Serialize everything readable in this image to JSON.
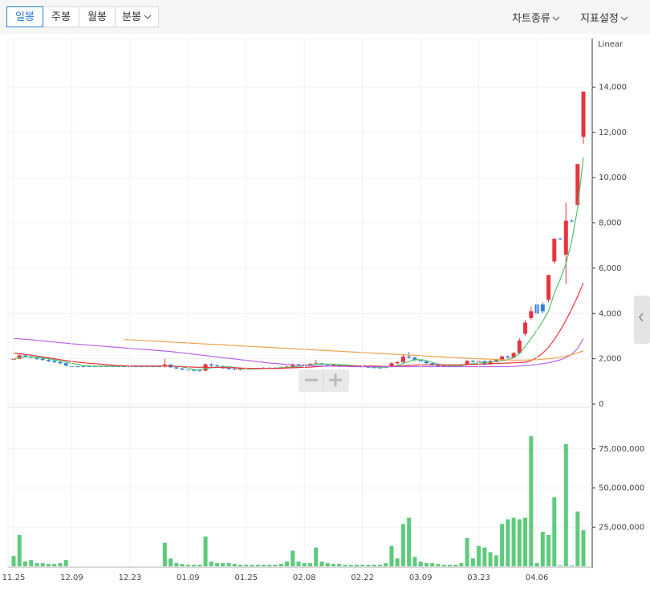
{
  "toolbar": {
    "periods": [
      "일봉",
      "주봉",
      "월봉",
      "분봉"
    ],
    "menus": [
      "차트종류",
      "지표설정"
    ]
  },
  "chart_data": [
    {
      "type": "candlestick",
      "scale_label": "Linear",
      "up_color": "#e8333f",
      "down_color": "#2f7fd8",
      "ylim": [
        0,
        16000
      ],
      "grid": true,
      "yticks": [
        0,
        {
          "value": 2000,
          "label": "2,000"
        },
        {
          "value": 4000,
          "label": "4,000"
        },
        {
          "value": 6000,
          "label": "6,000"
        },
        {
          "value": 8000,
          "label": "8,000"
        },
        {
          "value": 10000,
          "label": "10,000"
        },
        {
          "value": 12000,
          "label": "12,000"
        },
        {
          "value": 14000,
          "label": "14,000"
        }
      ],
      "open": [
        1950,
        2000,
        2150,
        2100,
        2050,
        2000,
        1950,
        1900,
        1850,
        1800,
        1670,
        1670,
        1670,
        1670,
        1670,
        1670,
        1670,
        1670,
        1670,
        1670,
        1670,
        1670,
        1670,
        1670,
        1670,
        1670,
        1670,
        1750,
        1620,
        1570,
        1520,
        1500,
        1480,
        1470,
        1750,
        1700,
        1680,
        1580,
        1550,
        1520,
        1550,
        1580,
        1560,
        1580,
        1600,
        1580,
        1600,
        1620,
        1650,
        1750,
        1700,
        1750,
        1780,
        1800,
        1750,
        1720,
        1740,
        1720,
        1700,
        1680,
        1660,
        1640,
        1620,
        1610,
        1600,
        1650,
        1800,
        1850,
        2100,
        2050,
        1950,
        1880,
        1800,
        1720,
        1680,
        1700,
        1680,
        1700,
        1750,
        1900,
        1860,
        1900,
        1750,
        1900,
        1950,
        2100,
        2050,
        2250,
        3100,
        3800,
        4400,
        4400,
        4600,
        6300,
        7300,
        6600,
        8100,
        8800,
        11800
      ],
      "high": [
        2050,
        2250,
        2200,
        2150,
        2100,
        2050,
        2000,
        1950,
        1900,
        1850,
        1670,
        1670,
        1670,
        1670,
        1670,
        1670,
        1670,
        1670,
        1670,
        1670,
        1670,
        1670,
        1670,
        1670,
        1670,
        1670,
        2000,
        1750,
        1650,
        1600,
        1550,
        1520,
        1500,
        1800,
        1800,
        1750,
        1700,
        1620,
        1600,
        1580,
        1600,
        1600,
        1600,
        1620,
        1620,
        1620,
        1650,
        1700,
        1800,
        1800,
        1780,
        1800,
        1950,
        1820,
        1780,
        1760,
        1760,
        1740,
        1720,
        1700,
        1700,
        1680,
        1660,
        1650,
        1680,
        1850,
        1900,
        2200,
        2300,
        2100,
        2000,
        1900,
        1820,
        1750,
        1720,
        1730,
        1720,
        1760,
        1950,
        1950,
        2000,
        1920,
        1950,
        2000,
        2150,
        2150,
        2300,
        2900,
        3700,
        4300,
        4700,
        4500,
        5700,
        7300,
        7350,
        8900,
        8150,
        10600,
        13800
      ],
      "low": [
        1900,
        2000,
        2050,
        2000,
        1950,
        1900,
        1850,
        1800,
        1750,
        1650,
        1670,
        1670,
        1670,
        1670,
        1670,
        1670,
        1670,
        1670,
        1670,
        1670,
        1670,
        1670,
        1670,
        1670,
        1670,
        1670,
        1600,
        1600,
        1550,
        1500,
        1480,
        1450,
        1450,
        1450,
        1650,
        1650,
        1550,
        1520,
        1500,
        1500,
        1520,
        1540,
        1540,
        1550,
        1560,
        1550,
        1580,
        1600,
        1620,
        1680,
        1680,
        1700,
        1740,
        1720,
        1700,
        1690,
        1700,
        1680,
        1660,
        1640,
        1620,
        1600,
        1590,
        1580,
        1580,
        1620,
        1750,
        1820,
        2000,
        1900,
        1850,
        1780,
        1700,
        1650,
        1640,
        1660,
        1650,
        1680,
        1720,
        1830,
        1840,
        1700,
        1740,
        1850,
        1920,
        2000,
        2030,
        2200,
        3000,
        3700,
        3900,
        4000,
        4500,
        6200,
        7250,
        5300,
        8050,
        8700,
        11500
      ],
      "close": [
        2000,
        2150,
        2100,
        2050,
        2000,
        1950,
        1900,
        1850,
        1800,
        1700,
        1670,
        1670,
        1670,
        1670,
        1670,
        1670,
        1670,
        1670,
        1670,
        1670,
        1670,
        1670,
        1670,
        1670,
        1670,
        1670,
        1750,
        1620,
        1570,
        1520,
        1500,
        1480,
        1470,
        1750,
        1700,
        1680,
        1580,
        1550,
        1520,
        1550,
        1580,
        1560,
        1580,
        1600,
        1580,
        1600,
        1620,
        1650,
        1750,
        1700,
        1750,
        1780,
        1800,
        1750,
        1720,
        1740,
        1720,
        1700,
        1680,
        1660,
        1640,
        1620,
        1610,
        1600,
        1650,
        1800,
        1850,
        2100,
        2050,
        1950,
        1880,
        1800,
        1720,
        1680,
        1700,
        1680,
        1700,
        1750,
        1900,
        1860,
        1900,
        1750,
        1900,
        1950,
        2100,
        2050,
        2250,
        2800,
        3600,
        4100,
        4000,
        4100,
        5700,
        7300,
        7300,
        8100,
        8100,
        10600,
        13800
      ],
      "lines": [
        {
          "color": "#4fc46b",
          "values": [
            2000,
            2050,
            2080,
            2080,
            2060,
            2040,
            2000,
            1950,
            1900,
            1850,
            1800,
            1750,
            1700,
            1680,
            1670,
            1670,
            1670,
            1670,
            1670,
            1670,
            1670,
            1670,
            1670,
            1670,
            1670,
            1670,
            1690,
            1680,
            1670,
            1640,
            1590,
            1530,
            1510,
            1560,
            1600,
            1620,
            1640,
            1650,
            1610,
            1560,
            1550,
            1550,
            1550,
            1570,
            1580,
            1580,
            1600,
            1610,
            1640,
            1660,
            1690,
            1730,
            1760,
            1760,
            1760,
            1760,
            1740,
            1730,
            1710,
            1690,
            1670,
            1650,
            1630,
            1620,
            1620,
            1660,
            1700,
            1790,
            1880,
            1950,
            1970,
            1920,
            1840,
            1760,
            1720,
            1700,
            1690,
            1700,
            1750,
            1780,
            1820,
            1830,
            1860,
            1870,
            1920,
            1950,
            2050,
            2230,
            2540,
            2900,
            3250,
            3650,
            4100,
            4900,
            5500,
            6200,
            7200,
            8650,
            10900
          ]
        },
        {
          "color": "#e8333f",
          "values": [
            2250,
            2220,
            2190,
            2160,
            2120,
            2080,
            2040,
            2000,
            1960,
            1920,
            1880,
            1850,
            1820,
            1800,
            1780,
            1760,
            1740,
            1720,
            1700,
            1690,
            1680,
            1680,
            1680,
            1680,
            1680,
            1680,
            1680,
            1670,
            1660,
            1650,
            1640,
            1630,
            1620,
            1620,
            1620,
            1620,
            1610,
            1600,
            1600,
            1590,
            1580,
            1570,
            1570,
            1570,
            1570,
            1570,
            1580,
            1590,
            1600,
            1610,
            1620,
            1630,
            1650,
            1660,
            1670,
            1680,
            1680,
            1680,
            1680,
            1680,
            1680,
            1680,
            1680,
            1670,
            1660,
            1660,
            1670,
            1690,
            1710,
            1720,
            1730,
            1730,
            1730,
            1730,
            1730,
            1730,
            1730,
            1730,
            1740,
            1750,
            1760,
            1770,
            1780,
            1790,
            1800,
            1810,
            1820,
            1830,
            1850,
            1920,
            2050,
            2250,
            2500,
            2850,
            3250,
            3700,
            4200,
            4750,
            5350
          ]
        },
        {
          "color": "#b765e8",
          "values": [
            2900,
            2880,
            2860,
            2840,
            2810,
            2790,
            2760,
            2740,
            2710,
            2690,
            2660,
            2640,
            2620,
            2600,
            2580,
            2560,
            2540,
            2520,
            2500,
            2480,
            2460,
            2440,
            2420,
            2400,
            2380,
            2360,
            2340,
            2320,
            2290,
            2260,
            2230,
            2200,
            2170,
            2140,
            2110,
            2080,
            2050,
            2020,
            1990,
            1960,
            1930,
            1900,
            1870,
            1840,
            1810,
            1790,
            1770,
            1750,
            1730,
            1710,
            1700,
            1690,
            1680,
            1680,
            1670,
            1670,
            1660,
            1660,
            1650,
            1650,
            1650,
            1650,
            1650,
            1650,
            1650,
            1650,
            1650,
            1650,
            1650,
            1650,
            1650,
            1650,
            1650,
            1650,
            1650,
            1650,
            1650,
            1650,
            1650,
            1650,
            1650,
            1650,
            1650,
            1650,
            1650,
            1650,
            1660,
            1680,
            1700,
            1720,
            1750,
            1780,
            1820,
            1880,
            1950,
            2050,
            2200,
            2450,
            2900
          ]
        },
        {
          "color": "#f0a14a",
          "values": [
            null,
            null,
            null,
            null,
            null,
            null,
            null,
            null,
            null,
            null,
            null,
            null,
            null,
            null,
            null,
            null,
            null,
            null,
            null,
            2850,
            2836,
            2822,
            2808,
            2794,
            2780,
            2766,
            2752,
            2738,
            2724,
            2710,
            2696,
            2682,
            2668,
            2654,
            2640,
            2626,
            2612,
            2598,
            2584,
            2570,
            2556,
            2542,
            2528,
            2514,
            2500,
            2486,
            2472,
            2458,
            2444,
            2430,
            2416,
            2402,
            2388,
            2374,
            2360,
            2346,
            2332,
            2318,
            2304,
            2290,
            2276,
            2262,
            2248,
            2234,
            2220,
            2206,
            2192,
            2178,
            2164,
            2150,
            2136,
            2122,
            2108,
            2094,
            2080,
            2066,
            2052,
            2038,
            2024,
            2010,
            2000,
            1990,
            1980,
            1970,
            1960,
            1950,
            1940,
            1940,
            1940,
            1950,
            1960,
            1980,
            2000,
            2030,
            2070,
            2120,
            2180,
            2260,
            2350
          ]
        }
      ]
    },
    {
      "type": "bar",
      "color": "#5ccb7c",
      "ylim": [
        0,
        100000000
      ],
      "grid": true,
      "yticks": [
        {
          "value": 25000000,
          "label": "25,000,000"
        },
        {
          "value": 50000000,
          "label": "50,000,000"
        },
        {
          "value": 75000000,
          "label": "75,000,000"
        }
      ],
      "categories": [
        "11.25",
        null,
        null,
        null,
        null,
        null,
        null,
        null,
        null,
        null,
        "12.09",
        null,
        null,
        null,
        null,
        null,
        null,
        null,
        null,
        null,
        "12.23",
        null,
        null,
        null,
        null,
        null,
        null,
        null,
        null,
        null,
        "01.09",
        null,
        null,
        null,
        null,
        null,
        null,
        null,
        null,
        null,
        "01.25",
        null,
        null,
        null,
        null,
        null,
        null,
        null,
        null,
        null,
        "02.08",
        null,
        null,
        null,
        null,
        null,
        null,
        null,
        null,
        null,
        "02.22",
        null,
        null,
        null,
        null,
        null,
        null,
        null,
        null,
        null,
        "03.09",
        null,
        null,
        null,
        null,
        null,
        null,
        null,
        null,
        null,
        "03.23",
        null,
        null,
        null,
        null,
        null,
        null,
        null,
        null,
        null,
        "04.06",
        null,
        null,
        null,
        null,
        null,
        null,
        null,
        null
      ],
      "values": [
        6500000,
        20000000,
        3000000,
        4000000,
        2000000,
        2000000,
        1500000,
        1500000,
        2000000,
        4000000,
        0,
        0,
        0,
        0,
        0,
        0,
        0,
        0,
        0,
        0,
        0,
        0,
        0,
        0,
        0,
        0,
        15000000,
        5000000,
        2000000,
        1500000,
        1000000,
        1000000,
        1000000,
        19000000,
        3000000,
        2000000,
        2000000,
        2000000,
        1500000,
        1000000,
        1000000,
        1000000,
        1000000,
        1000000,
        1000000,
        1000000,
        1500000,
        3000000,
        10000000,
        3000000,
        2000000,
        2000000,
        12000000,
        3000000,
        2000000,
        1500000,
        1500000,
        1000000,
        1000000,
        1000000,
        1000000,
        1000000,
        1000000,
        1000000,
        2000000,
        13000000,
        5000000,
        27000000,
        31000000,
        6000000,
        3000000,
        2000000,
        2000000,
        1500000,
        1000000,
        1000000,
        1000000,
        2000000,
        18000000,
        5000000,
        13000000,
        12000000,
        9000000,
        7000000,
        27000000,
        30000000,
        31000000,
        30000000,
        31000000,
        83000000,
        2000000,
        22000000,
        20000000,
        44000000,
        500000,
        78000000,
        500000,
        35000000,
        23000000
      ]
    }
  ]
}
